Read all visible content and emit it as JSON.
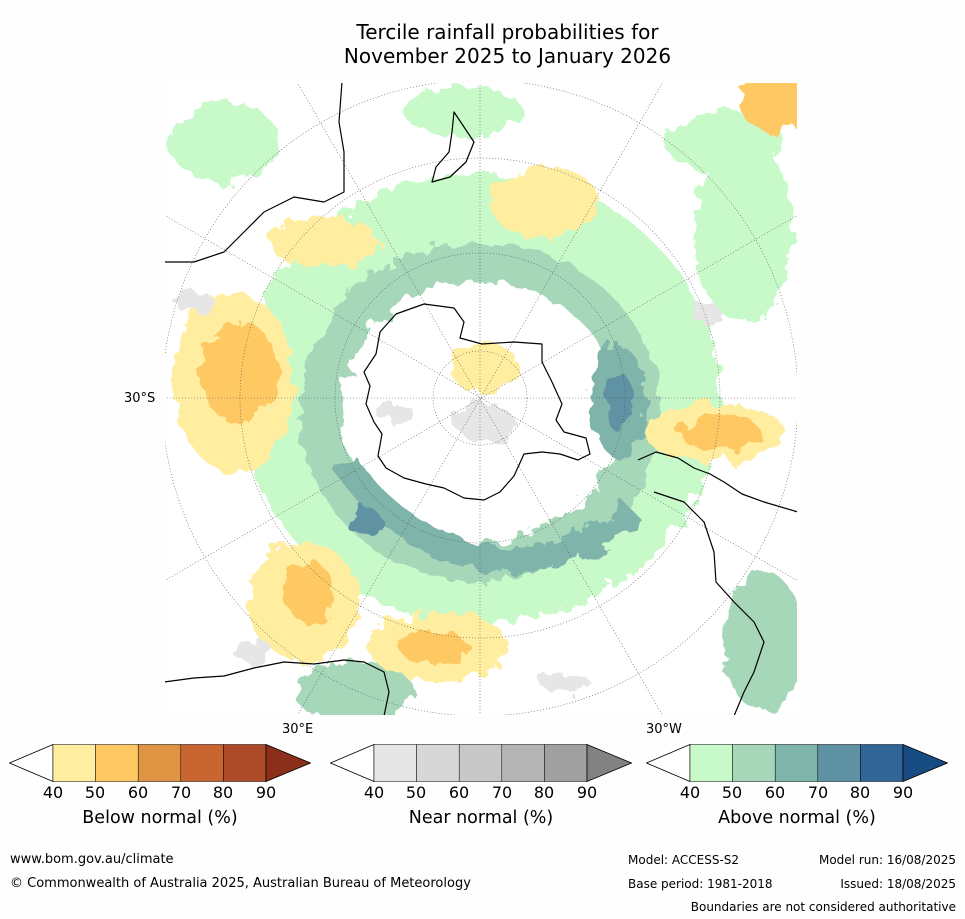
{
  "title_line1": "Tercile rainfall probabilities for",
  "title_line2": "November 2025 to January 2026",
  "map_labels": {
    "lat_30s": "30°S",
    "lon_30e": "30°E",
    "lon_30w": "30°W"
  },
  "colorbars": [
    {
      "label": "Below normal (%)",
      "ticks": [
        "40",
        "50",
        "60",
        "70",
        "80",
        "90"
      ],
      "colors": [
        "#ffffff",
        "#ffeda0",
        "#fec962",
        "#df9444",
        "#c96530",
        "#ad4a28",
        "#8b2e1a"
      ]
    },
    {
      "label": "Near normal (%)",
      "ticks": [
        "40",
        "50",
        "60",
        "70",
        "80",
        "90"
      ],
      "colors": [
        "#ffffff",
        "#e6e6e6",
        "#d7d7d7",
        "#c8c8c8",
        "#b4b4b4",
        "#a0a0a0",
        "#828282"
      ]
    },
    {
      "label": "Above normal (%)",
      "ticks": [
        "40",
        "50",
        "60",
        "70",
        "80",
        "90"
      ],
      "colors": [
        "#ffffff",
        "#c8f9c9",
        "#a6d7b9",
        "#7fb4ab",
        "#5e92a3",
        "#326597",
        "#174c82"
      ]
    }
  ],
  "footer": {
    "website": "www.bom.gov.au/climate",
    "copyright": "© Commonwealth of Australia 2025, Australian Bureau of Meteorology",
    "model": "Model: ACCESS-S2",
    "model_run": "Model run: 16/08/2025",
    "base_period": "Base period: 1981-2018",
    "issued": "Issued: 18/08/2025",
    "disclaimer": "Boundaries are not considered authoritative"
  }
}
